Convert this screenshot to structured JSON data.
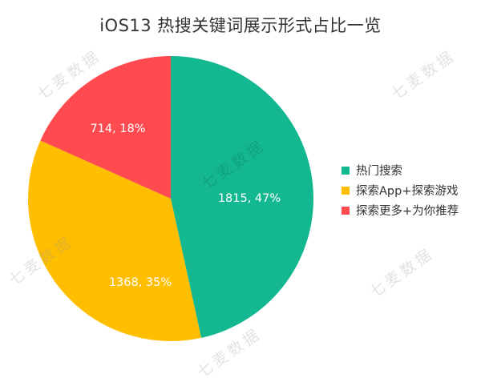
{
  "chart_data": {
    "type": "pie",
    "title": "iOS13 热搜关键词展示形式占比一览",
    "categories": [
      "热门搜索",
      "探索App+探索游戏",
      "探索更多+为你推荐"
    ],
    "values": [
      1815,
      1368,
      714
    ],
    "percentages": [
      47,
      35,
      18
    ],
    "data_labels": [
      "1815, 47%",
      "1368, 35%",
      "714, 18%"
    ],
    "colors": [
      "#14B890",
      "#FFBE00",
      "#FF4B50"
    ],
    "legend_position": "right",
    "start_angle": "12 o'clock, clockwise"
  },
  "watermark": "七麦数据",
  "legend": {
    "items": [
      {
        "label": "热门搜索",
        "color": "#14B890"
      },
      {
        "label": "探索App+探索游戏",
        "color": "#FFBE00"
      },
      {
        "label": "探索更多+为你推荐",
        "color": "#FF4B50"
      }
    ]
  }
}
